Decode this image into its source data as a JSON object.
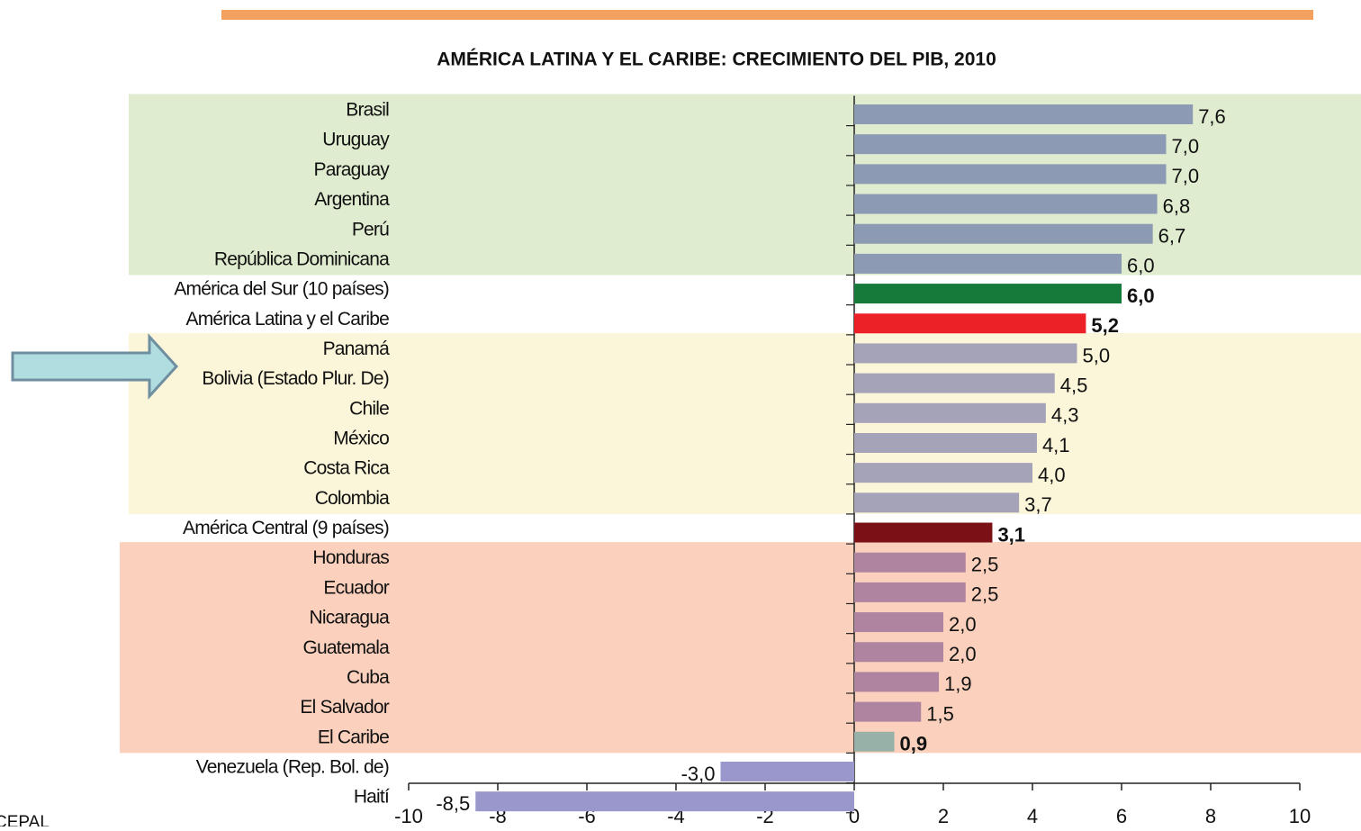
{
  "chart_data": {
    "type": "barh",
    "title": "AMÉRICA LATINA Y EL CARIBE: CRECIMIENTO DEL PIB, 2010",
    "categories": [
      "Brasil",
      "Uruguay",
      "Paraguay",
      "Argentina",
      "Perú",
      "República Dominicana",
      "América del Sur (10 países)",
      "América Latina y el Caribe",
      "Panamá",
      "Bolivia (Estado Plur. De)",
      "Chile",
      "México",
      "Costa Rica",
      "Colombia",
      "América Central (9 países)",
      "Honduras",
      "Ecuador",
      "Nicaragua",
      "Guatemala",
      "Cuba",
      "El Salvador",
      "El Caribe",
      "Venezuela (Rep. Bol. de)",
      "Haití"
    ],
    "values": [
      7.6,
      7.0,
      7.0,
      6.8,
      6.7,
      6.0,
      6.0,
      5.2,
      5.0,
      4.5,
      4.3,
      4.1,
      4.0,
      3.7,
      3.1,
      2.5,
      2.5,
      2.0,
      2.0,
      1.9,
      1.5,
      0.9,
      -3.0,
      -8.5
    ],
    "value_labels": [
      "7,6",
      "7,0",
      "7,0",
      "6,8",
      "6,7",
      "6,0",
      "6,0",
      "5,2",
      "5,0",
      "4,5",
      "4,3",
      "4,1",
      "4,0",
      "3,7",
      "3,1",
      "2,5",
      "2,5",
      "2,0",
      "2,0",
      "1,9",
      "1,5",
      "0,9",
      "-3,0",
      "-8,5"
    ],
    "colors": [
      "#8c9ab3",
      "#8c9ab3",
      "#8c9ab3",
      "#8c9ab3",
      "#8c9ab3",
      "#8c9ab3",
      "#167a3a",
      "#ec2128",
      "#a4a3b8",
      "#a4a3b8",
      "#a4a3b8",
      "#a4a3b8",
      "#a4a3b8",
      "#a4a3b8",
      "#7b1016",
      "#ae84a0",
      "#ae84a0",
      "#ae84a0",
      "#ae84a0",
      "#ae84a0",
      "#ae84a0",
      "#98b1a8",
      "#9a97cc",
      "#9a97cc"
    ],
    "xlim": [
      -10,
      10
    ],
    "xticks": [
      -10,
      -8,
      -6,
      -4,
      -2,
      0,
      2,
      4,
      6,
      8,
      10
    ],
    "source": "CEPAL"
  }
}
